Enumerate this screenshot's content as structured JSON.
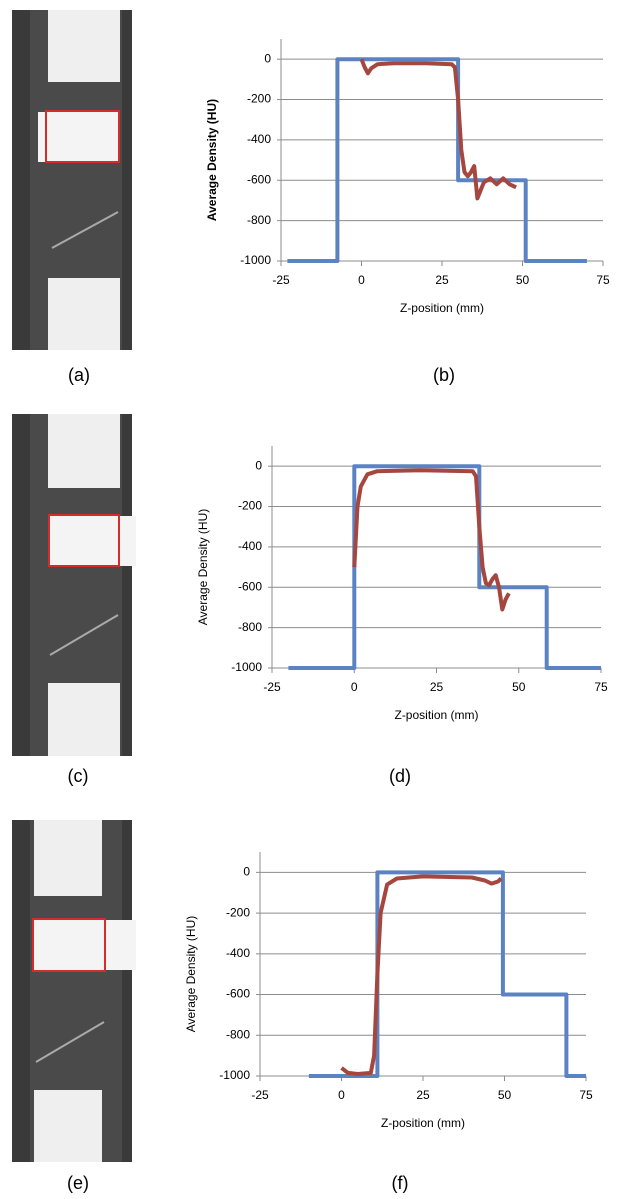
{
  "panel_labels": [
    "(a)",
    "(b)",
    "(c)",
    "(d)",
    "(e)",
    "(f)"
  ],
  "chart_data": [
    {
      "type": "line",
      "ylabel": "Average Density (HU)",
      "ylabel_weight": "bold",
      "xlabel": "Z-position (mm)",
      "xlim": [
        -25,
        75
      ],
      "xticks": [
        -25,
        0,
        25,
        50,
        75
      ],
      "ylim": [
        -1000,
        100
      ],
      "yticks": [
        -1000,
        -800,
        -600,
        -400,
        -200,
        0
      ],
      "grid": true,
      "series": [
        {
          "color": "#5b83c4",
          "x": [
            -23,
            -7.5,
            -7.5,
            30,
            30,
            51,
            51,
            70
          ],
          "values": [
            -1000,
            -1000,
            0,
            0,
            -600,
            -600,
            -1000,
            -1000
          ]
        },
        {
          "color": "#a5473f",
          "x": [
            0,
            1,
            2,
            3,
            5,
            10,
            20,
            28,
            29,
            30,
            31,
            32,
            33,
            34,
            35,
            36,
            37,
            38,
            40,
            42,
            44,
            46,
            48
          ],
          "values": [
            0,
            -40,
            -70,
            -45,
            -25,
            -20,
            -20,
            -25,
            -40,
            -200,
            -450,
            -560,
            -580,
            -560,
            -530,
            -690,
            -650,
            -610,
            -590,
            -620,
            -590,
            -620,
            -635
          ]
        }
      ]
    },
    {
      "type": "line",
      "ylabel": "Average Density (HU)",
      "ylabel_weight": "normal",
      "xlabel": "Z-position (mm)",
      "xlim": [
        -25,
        75
      ],
      "xticks": [
        -25,
        0,
        25,
        50,
        75
      ],
      "ylim": [
        -1000,
        100
      ],
      "yticks": [
        -1000,
        -800,
        -600,
        -400,
        -200,
        0
      ],
      "grid": true,
      "series": [
        {
          "color": "#5b83c4",
          "x": [
            -20,
            0,
            0,
            38,
            38,
            58.5,
            58.5,
            75
          ],
          "values": [
            -1000,
            -1000,
            0,
            0,
            -600,
            -600,
            -1000,
            -1000
          ]
        },
        {
          "color": "#a5473f",
          "x": [
            0,
            1,
            2,
            4,
            7,
            20,
            36,
            37,
            38,
            39,
            40,
            41,
            42,
            43,
            44,
            45,
            46,
            47
          ],
          "values": [
            -500,
            -200,
            -100,
            -40,
            -25,
            -20,
            -25,
            -50,
            -300,
            -500,
            -580,
            -590,
            -560,
            -540,
            -600,
            -710,
            -660,
            -630
          ]
        }
      ]
    },
    {
      "type": "line",
      "ylabel": "Average Density (HU)",
      "ylabel_weight": "normal",
      "xlabel": "Z-position (mm)",
      "xlim": [
        -25,
        75
      ],
      "xticks": [
        -25,
        0,
        25,
        50,
        75
      ],
      "ylim": [
        -1000,
        100
      ],
      "yticks": [
        -1000,
        -800,
        -600,
        -400,
        -200,
        0
      ],
      "grid": true,
      "series": [
        {
          "color": "#5b83c4",
          "x": [
            -10,
            11,
            11,
            49.5,
            49.5,
            69,
            69,
            75
          ],
          "values": [
            -1000,
            -1000,
            0,
            0,
            -600,
            -600,
            -1000,
            -1000
          ]
        },
        {
          "color": "#a5473f",
          "x": [
            0,
            2,
            5,
            9,
            10,
            11,
            12,
            14,
            17,
            25,
            40,
            44,
            46,
            48,
            49
          ],
          "values": [
            -960,
            -985,
            -990,
            -985,
            -900,
            -500,
            -200,
            -60,
            -30,
            -20,
            -25,
            -40,
            -55,
            -45,
            -30
          ]
        }
      ]
    }
  ]
}
